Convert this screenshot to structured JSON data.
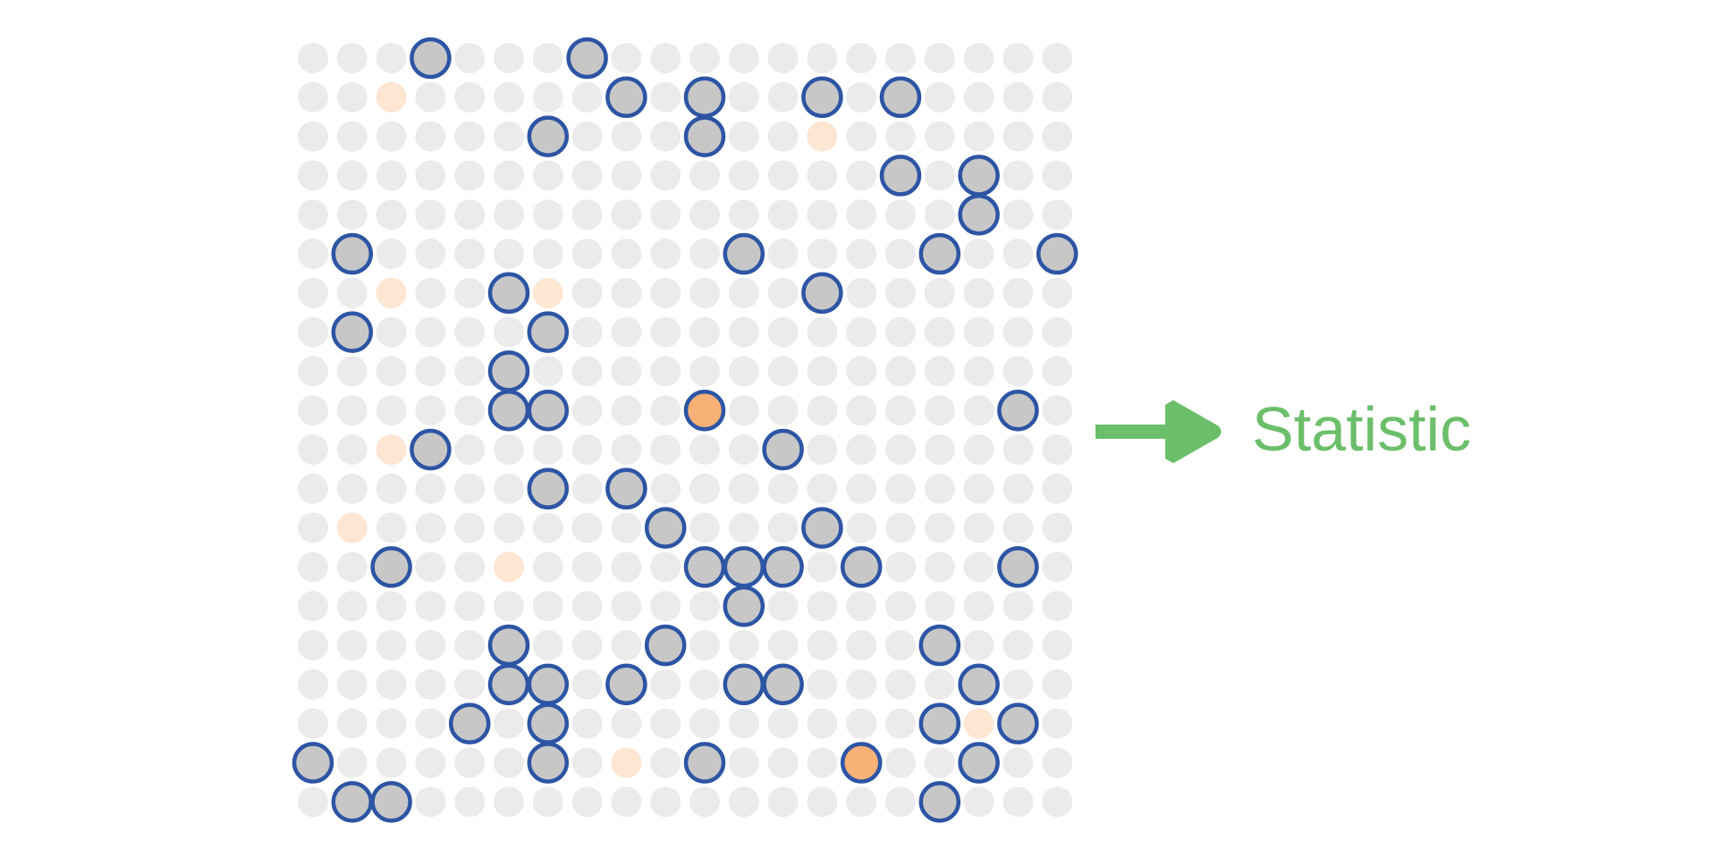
{
  "grid": {
    "rows": 20,
    "cols": 20,
    "colors": {
      "empty": "#ebebeb",
      "marked_fill": "#c7c7c8",
      "marked_stroke": "#2d55a4",
      "faint_orange": "#fde6d2",
      "orange": "#f7b076"
    },
    "marked": [
      [
        0,
        3
      ],
      [
        0,
        7
      ],
      [
        1,
        8
      ],
      [
        1,
        10
      ],
      [
        1,
        13
      ],
      [
        1,
        15
      ],
      [
        2,
        6
      ],
      [
        2,
        10
      ],
      [
        3,
        15
      ],
      [
        3,
        17
      ],
      [
        4,
        17
      ],
      [
        5,
        1
      ],
      [
        5,
        11
      ],
      [
        5,
        16
      ],
      [
        5,
        19
      ],
      [
        6,
        5
      ],
      [
        6,
        13
      ],
      [
        7,
        1
      ],
      [
        7,
        6
      ],
      [
        8,
        5
      ],
      [
        9,
        5
      ],
      [
        9,
        6
      ],
      [
        9,
        18
      ],
      [
        10,
        3
      ],
      [
        10,
        12
      ],
      [
        11,
        6
      ],
      [
        11,
        8
      ],
      [
        12,
        9
      ],
      [
        12,
        13
      ],
      [
        13,
        2
      ],
      [
        13,
        10
      ],
      [
        13,
        11
      ],
      [
        13,
        12
      ],
      [
        13,
        14
      ],
      [
        13,
        18
      ],
      [
        14,
        11
      ],
      [
        15,
        5
      ],
      [
        15,
        9
      ],
      [
        15,
        16
      ],
      [
        16,
        5
      ],
      [
        16,
        6
      ],
      [
        16,
        8
      ],
      [
        16,
        11
      ],
      [
        16,
        12
      ],
      [
        16,
        17
      ],
      [
        17,
        4
      ],
      [
        17,
        6
      ],
      [
        17,
        16
      ],
      [
        17,
        18
      ],
      [
        18,
        0
      ],
      [
        18,
        6
      ],
      [
        18,
        10
      ],
      [
        18,
        17
      ],
      [
        19,
        1
      ],
      [
        19,
        2
      ],
      [
        19,
        16
      ]
    ],
    "orange_marked": [
      [
        9,
        10
      ],
      [
        18,
        14
      ]
    ],
    "faint_orange": [
      [
        1,
        2
      ],
      [
        2,
        13
      ],
      [
        6,
        2
      ],
      [
        6,
        6
      ],
      [
        10,
        2
      ],
      [
        12,
        1
      ],
      [
        13,
        5
      ],
      [
        17,
        17
      ],
      [
        18,
        8
      ]
    ]
  },
  "arrow": {
    "icon": "right-arrow-icon",
    "color": "#6cbf6a"
  },
  "label": {
    "text": "Statistic",
    "color": "#6cbf6a"
  }
}
